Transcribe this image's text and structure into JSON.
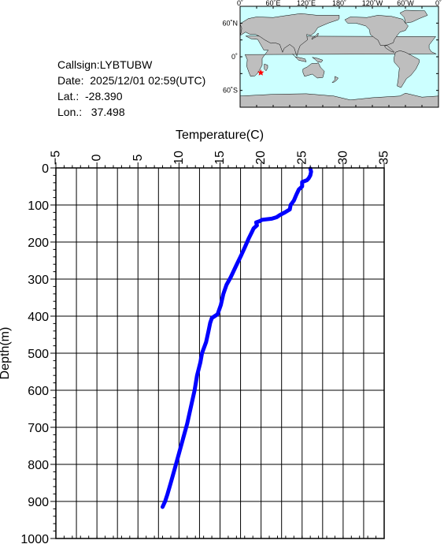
{
  "station": {
    "callsign_label": "Callsign:LYBTUBW",
    "date_label": "Date:  2025/12/01 02:59(UTC)",
    "lat_label": "Lat.:  -28.390",
    "lon_label": "Lon.:   37.498"
  },
  "map": {
    "lon_labels": [
      "0˚",
      "60˚E",
      "120˚E",
      "180˚",
      "120˚W",
      "60˚W",
      "0˚"
    ],
    "lat_labels": [
      "60˚N",
      "0˚",
      "60˚S"
    ],
    "ocean_color": "#ccffff",
    "land_color": "#bebebe",
    "marker_color": "#ff0000",
    "marker": {
      "lat": -28.39,
      "lon": 37.498
    }
  },
  "chart_data": {
    "type": "line",
    "title": "",
    "xlabel": "Temperature(C)",
    "ylabel": "Depth(m)",
    "xlim": [
      -5,
      35
    ],
    "ylim": [
      0,
      1000
    ],
    "y_inverted": true,
    "x_axis_position": "top",
    "x_ticks": [
      -5,
      0,
      5,
      10,
      15,
      20,
      25,
      30,
      35
    ],
    "y_ticks": [
      0,
      100,
      200,
      300,
      400,
      500,
      600,
      700,
      800,
      900,
      1000
    ],
    "grid": true,
    "series": [
      {
        "color": "#0000ff",
        "points": [
          [
            26.0,
            2
          ],
          [
            26.1,
            10
          ],
          [
            26.0,
            20
          ],
          [
            25.8,
            28
          ],
          [
            25.6,
            33
          ],
          [
            25.0,
            38
          ],
          [
            25.0,
            50
          ],
          [
            24.6,
            58
          ],
          [
            24.3,
            72
          ],
          [
            24.0,
            88
          ],
          [
            23.6,
            100
          ],
          [
            23.5,
            112
          ],
          [
            22.9,
            120
          ],
          [
            22.3,
            127
          ],
          [
            21.9,
            133
          ],
          [
            21.3,
            137
          ],
          [
            20.1,
            140
          ],
          [
            19.9,
            143
          ],
          [
            19.4,
            147
          ],
          [
            19.5,
            155
          ],
          [
            19.1,
            163
          ],
          [
            18.9,
            172
          ],
          [
            18.5,
            190
          ],
          [
            18.2,
            205
          ],
          [
            18.0,
            215
          ],
          [
            17.6,
            235
          ],
          [
            17.0,
            262
          ],
          [
            16.3,
            295
          ],
          [
            15.8,
            315
          ],
          [
            15.4,
            340
          ],
          [
            15.1,
            370
          ],
          [
            14.7,
            395
          ],
          [
            14.0,
            405
          ],
          [
            13.8,
            418
          ],
          [
            13.6,
            440
          ],
          [
            13.3,
            470
          ],
          [
            12.8,
            500
          ],
          [
            12.6,
            525
          ],
          [
            12.2,
            560
          ],
          [
            11.9,
            600
          ],
          [
            11.5,
            640
          ],
          [
            11.0,
            690
          ],
          [
            10.5,
            730
          ],
          [
            10.0,
            770
          ],
          [
            9.5,
            810
          ],
          [
            9.0,
            850
          ],
          [
            8.6,
            880
          ],
          [
            8.3,
            900
          ],
          [
            8.0,
            915
          ]
        ]
      }
    ]
  }
}
